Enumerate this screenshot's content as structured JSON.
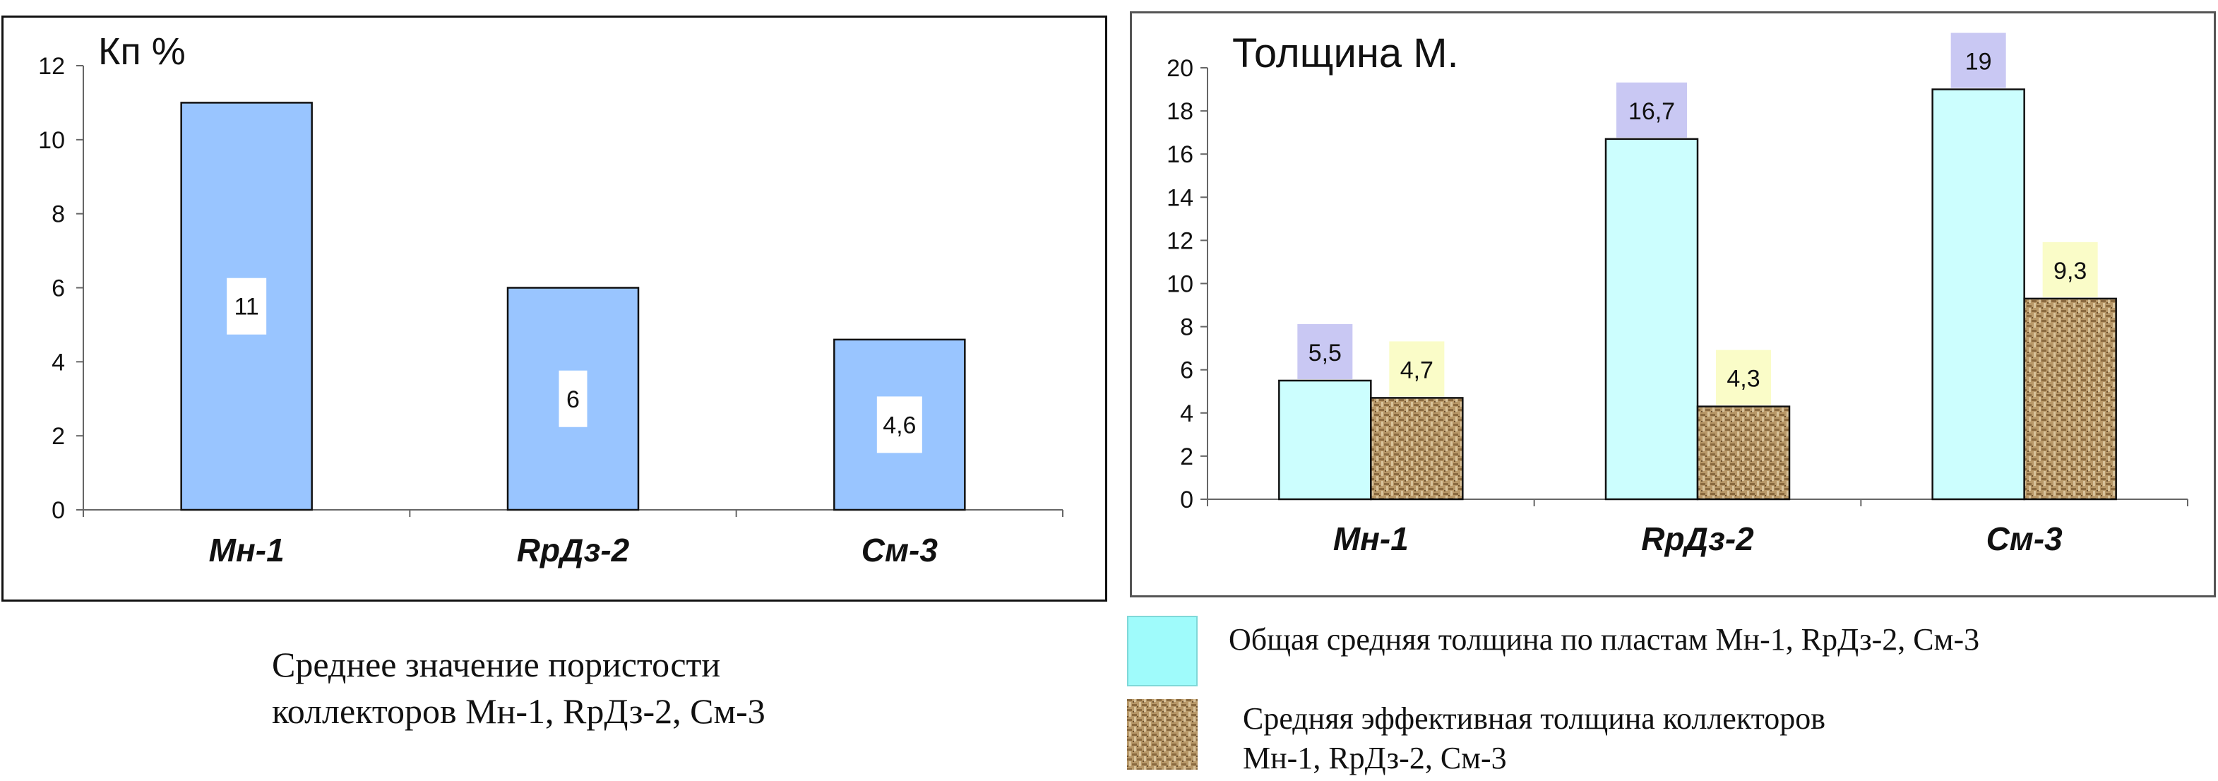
{
  "chart_data": [
    {
      "type": "bar",
      "title": "Кп %",
      "categories": [
        "Мн-1",
        "RрДз-2",
        "См-3"
      ],
      "series": [
        {
          "values": [
            11,
            6,
            4.6
          ],
          "labels": [
            "11",
            "6",
            "4,6"
          ],
          "color": "#99c5ff"
        }
      ],
      "ylim": [
        0,
        12
      ],
      "yticks": [
        0,
        2,
        4,
        6,
        8,
        10,
        12
      ],
      "grid": false
    },
    {
      "type": "bar",
      "title": "Толщина М.",
      "categories": [
        "Мн-1",
        "RрДз-2",
        "См-3"
      ],
      "series": [
        {
          "name": "Общая средняя толщина по пластам  Мн-1, RрДз-2, См-3",
          "values": [
            5.5,
            16.7,
            19
          ],
          "labels": [
            "5,5",
            "16,7",
            "19"
          ],
          "color": "#ccfefe",
          "label_bg": "#c9c8f3"
        },
        {
          "name": "Средняя эффективная толщина коллекторов Мн-1, RрДз-2, См-3",
          "values": [
            4.7,
            4.3,
            9.3
          ],
          "labels": [
            "4,7",
            "4,3",
            "9,3"
          ],
          "color": "#b99a6b",
          "label_bg": "#fafcc8"
        }
      ],
      "ylim": [
        0,
        20
      ],
      "yticks": [
        0,
        2,
        4,
        6,
        8,
        10,
        12,
        14,
        16,
        18,
        20
      ],
      "grid": false,
      "legend_position": "bottom"
    }
  ],
  "captions": {
    "left_line1": "Среднее значение пористости",
    "left_line2": "коллекторов Мн-1, RрДз-2, См-3"
  },
  "legend": {
    "total_label": "Общая средняя толщина по пластам  Мн-1, RрДз-2, См-3",
    "eff_label_line1": "Средняя эффективная толщина коллекторов",
    "eff_label_line2": "Мн-1, RрДз-2, См-3"
  }
}
